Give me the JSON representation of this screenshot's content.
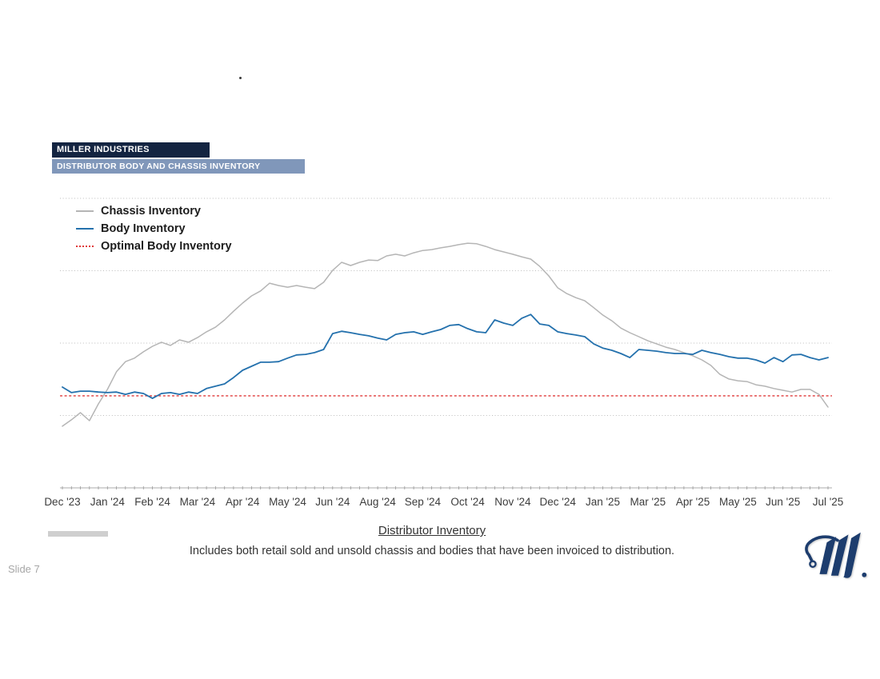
{
  "page": {
    "slide_label": "Slide 7"
  },
  "header": {
    "company": "MILLER INDUSTRIES",
    "title": "DISTRIBUTOR BODY AND CHASSIS INVENTORY",
    "company_bg": "#132441",
    "title_bg": "#8097ba"
  },
  "caption": {
    "title": "Distributor Inventory",
    "body": "Includes both retail sold and unsold chassis and bodies that have been invoiced to distribution."
  },
  "logo": {
    "name": "miller-industries-logo",
    "color": "#1d3d6e"
  },
  "chart_data": {
    "type": "line",
    "title": "",
    "xlabel": "",
    "ylabel": "",
    "grid": "horizontal-dotted",
    "legend_position": "top-left",
    "y_axis": {
      "min": 0,
      "max": 100,
      "gridline_values": [
        25,
        50,
        75,
        100
      ],
      "tick_labels_shown": false,
      "units": "relative inventory (unlabeled axis)"
    },
    "x_tick_labels": [
      "Dec '23",
      "Jan '24",
      "Feb '24",
      "Mar '24",
      "Apr '24",
      "May '24",
      "Jun '24",
      "Aug '24",
      "Sep '24",
      "Oct '24",
      "Nov '24",
      "Dec '24",
      "Jan '25",
      "Mar '25",
      "Apr '25",
      "May '25",
      "Jun '25",
      "Jul '25"
    ],
    "x_resolution": "weekly",
    "series": [
      {
        "name": "Chassis Inventory",
        "color": "#b5b5b5",
        "values": [
          21.3,
          23.5,
          26.0,
          23.2,
          29.0,
          34.0,
          40.1,
          43.6,
          44.8,
          47.0,
          48.9,
          50.3,
          49.2,
          51.1,
          50.3,
          51.9,
          53.9,
          55.5,
          58.0,
          61.0,
          63.8,
          66.3,
          68.0,
          70.7,
          69.9,
          69.3,
          69.9,
          69.3,
          68.8,
          71.0,
          75.1,
          77.9,
          76.8,
          77.9,
          78.7,
          78.5,
          80.1,
          80.7,
          80.1,
          81.2,
          82.0,
          82.3,
          82.9,
          83.4,
          84.0,
          84.5,
          84.3,
          83.4,
          82.3,
          81.5,
          80.7,
          79.8,
          79.0,
          76.5,
          73.2,
          69.1,
          67.1,
          65.7,
          64.6,
          62.2,
          59.7,
          57.7,
          55.2,
          53.6,
          52.2,
          50.8,
          49.7,
          48.6,
          47.8,
          46.7,
          45.6,
          44.2,
          42.3,
          39.2,
          37.6,
          37.0,
          36.7,
          35.6,
          35.1,
          34.3,
          33.7,
          33.1,
          34.0,
          34.0,
          32.3,
          27.9
        ]
      },
      {
        "name": "Body Inventory",
        "color": "#2471ad",
        "values": [
          34.8,
          32.9,
          33.4,
          33.4,
          33.1,
          32.9,
          33.1,
          32.3,
          33.1,
          32.6,
          30.9,
          32.6,
          32.9,
          32.3,
          33.1,
          32.6,
          34.3,
          35.1,
          35.9,
          38.1,
          40.6,
          42.0,
          43.4,
          43.4,
          43.6,
          44.8,
          45.9,
          46.1,
          46.7,
          47.8,
          53.3,
          54.1,
          53.6,
          53.0,
          52.5,
          51.7,
          51.1,
          53.0,
          53.6,
          53.9,
          53.0,
          53.9,
          54.7,
          56.1,
          56.4,
          55.0,
          53.9,
          53.6,
          58.0,
          56.9,
          56.1,
          58.6,
          59.9,
          56.6,
          56.1,
          53.9,
          53.3,
          52.8,
          52.2,
          49.7,
          48.3,
          47.5,
          46.4,
          45.0,
          47.8,
          47.5,
          47.2,
          46.7,
          46.4,
          46.4,
          46.1,
          47.5,
          46.7,
          46.1,
          45.3,
          44.8,
          44.8,
          44.2,
          43.1,
          45.0,
          43.6,
          45.9,
          46.1,
          45.0,
          44.2,
          45.0
        ]
      },
      {
        "name": "Optimal Body Inventory",
        "color": "#e03a3a",
        "style": "dotted",
        "constant_value": 31.8
      }
    ]
  }
}
